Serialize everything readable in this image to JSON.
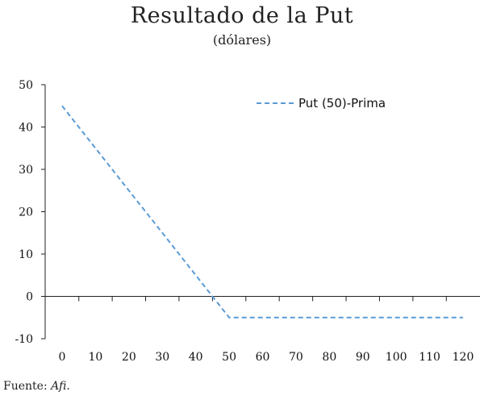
{
  "title": "Resultado de la Put",
  "subtitle": "(dólares)",
  "source_label": "Fuente: ",
  "source_name": "Afi.",
  "chart_data": {
    "type": "line",
    "title": "Resultado de la Put",
    "subtitle": "(dólares)",
    "xlabel": "",
    "ylabel": "",
    "x": [
      0,
      10,
      20,
      30,
      40,
      50,
      60,
      70,
      80,
      90,
      100,
      110,
      120
    ],
    "x_tick_labels": [
      "0",
      "10",
      "20",
      "30",
      "40",
      "50",
      "60",
      "70",
      "80",
      "90",
      "100",
      "110",
      "120"
    ],
    "y_tick_labels": [
      "50",
      "40",
      "30",
      "20",
      "10",
      "0",
      "-10"
    ],
    "xlim": [
      0,
      120
    ],
    "ylim": [
      -10,
      50
    ],
    "grid": false,
    "legend_position": "top-right",
    "series": [
      {
        "name": "Put (50)-Prima",
        "color": "#5b9bd5",
        "style": "dashed",
        "values": [
          45,
          35,
          25,
          15,
          5,
          -5,
          -5,
          -5,
          -5,
          -5,
          -5,
          -5,
          -5
        ]
      }
    ]
  }
}
